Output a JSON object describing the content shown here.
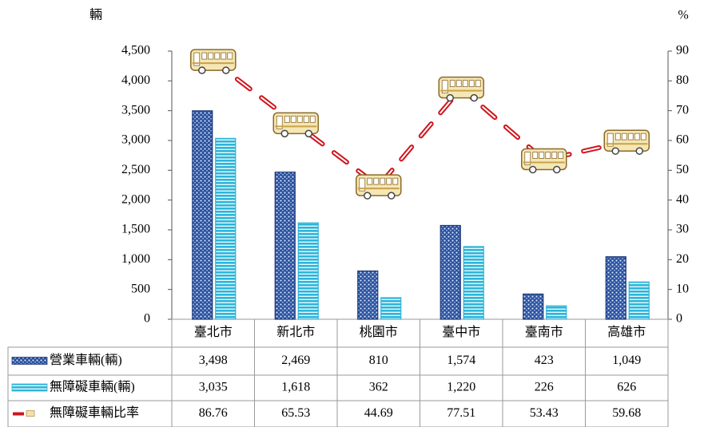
{
  "chart_data": {
    "type": "bar-line-table",
    "y_label": "輛",
    "y2_label": "%",
    "categories": [
      "臺北市",
      "新北市",
      "桃園市",
      "臺中市",
      "臺南市",
      "高雄市"
    ],
    "series": [
      {
        "name": "營業車輛(輛)",
        "color": "#1f3a7a",
        "type": "bar",
        "values": [
          3498,
          2469,
          810,
          1574,
          423,
          1049
        ],
        "value_labels": [
          "3,498",
          "2,469",
          "810",
          "1,574",
          "423",
          "1,049"
        ]
      },
      {
        "name": "無障礙車輛(輛)",
        "color": "#2fb4d8",
        "type": "bar",
        "values": [
          3035,
          1618,
          362,
          1220,
          226,
          626
        ],
        "value_labels": [
          "3,035",
          "1,618",
          "362",
          "1,220",
          "226",
          "626"
        ]
      },
      {
        "name": "無障礙車輛比率",
        "color": "#d0141c",
        "type": "line",
        "axis": "y2",
        "values": [
          86.76,
          65.53,
          44.69,
          77.51,
          53.43,
          59.68
        ]
      }
    ],
    "ylim": [
      0,
      4500
    ],
    "yticks": [
      0,
      500,
      {
        "value": 1000,
        "label": "1,000"
      },
      {
        "value": 1500,
        "label": "1,500"
      },
      {
        "value": 2000,
        "label": "2,000"
      },
      {
        "value": 2500,
        "label": "2,500"
      },
      {
        "value": 3000,
        "label": "3,000"
      },
      {
        "value": 3500,
        "label": "3,500"
      },
      {
        "value": 4000,
        "label": "4,000"
      },
      {
        "value": 4500,
        "label": "4,500"
      }
    ],
    "y2lim": [
      0,
      90
    ],
    "y2ticks": [
      0,
      10,
      20,
      30,
      40,
      50,
      60,
      70,
      80,
      90
    ]
  }
}
